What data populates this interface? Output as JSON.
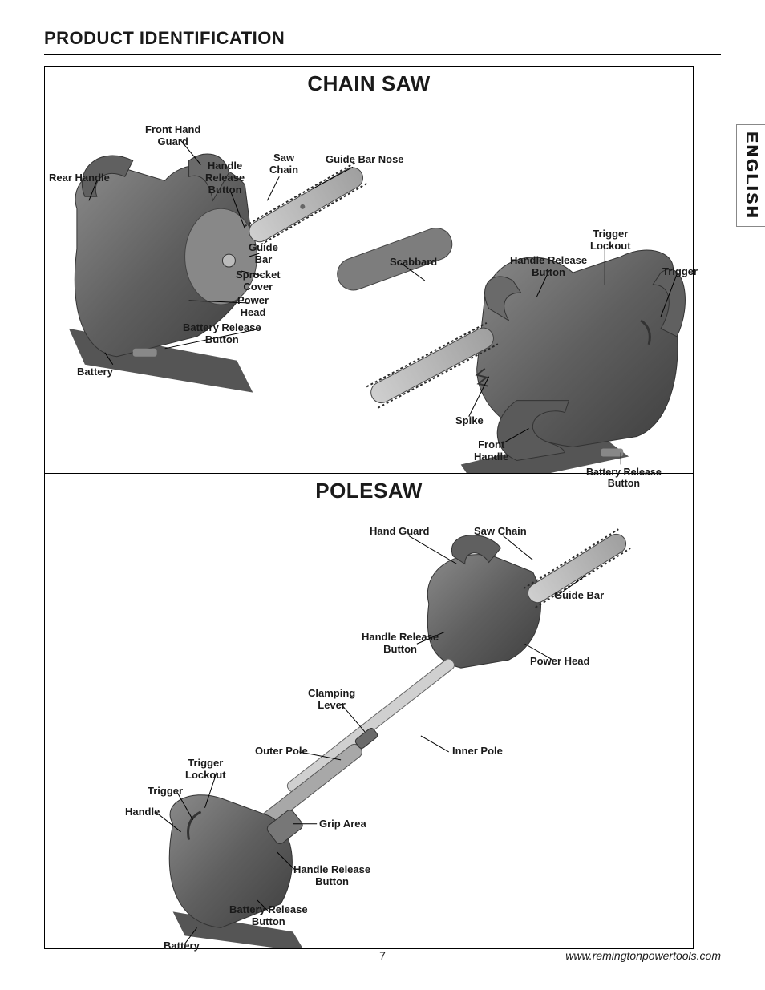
{
  "page_title": "PRODUCT IDENTIFICATION",
  "language_tab": "ENGLISH",
  "page_number": "7",
  "footer_url": "www.remingtonpowertools.com",
  "chainsaw": {
    "title": "CHAIN SAW",
    "labels": {
      "front_hand_guard": "Front Hand\nGuard",
      "rear_handle": "Rear Handle",
      "handle_release_button_l": "Handle\nRelease\nButton",
      "saw_chain": "Saw\nChain",
      "guide_bar_nose": "Guide Bar Nose",
      "guide_bar": "Guide\nBar",
      "sprocket_cover": "Sprocket\nCover",
      "power_head": "Power\nHead",
      "battery_release_button_l": "Battery Release\nButton",
      "battery": "Battery",
      "scabbard": "Scabbard",
      "trigger_lockout": "Trigger\nLockout",
      "handle_release_button_r": "Handle Release\nButton",
      "trigger": "Trigger",
      "spike": "Spike",
      "front_handle": "Front\nHandle",
      "battery_release_button_r": "Battery Release\nButton"
    }
  },
  "polesaw": {
    "title": "POLESAW",
    "labels": {
      "hand_guard": "Hand Guard",
      "saw_chain": "Saw Chain",
      "guide_bar": "Guide Bar",
      "handle_release_button_top": "Handle Release\nButton",
      "power_head": "Power Head",
      "clamping_lever": "Clamping\nLever",
      "outer_pole": "Outer Pole",
      "inner_pole": "Inner Pole",
      "trigger_lockout": "Trigger\nLockout",
      "trigger": "Trigger",
      "handle": "Handle",
      "grip_area": "Grip Area",
      "handle_release_button_bot": "Handle Release\nButton",
      "battery_release_button": "Battery Release\nButton",
      "battery": "Battery"
    }
  },
  "style": {
    "body_fill": "#6e6e6e",
    "body_dark": "#4a4a4a",
    "body_light": "#9a9a9a",
    "bar_fill": "#b8b8b8",
    "chain_stroke": "#2a2a2a",
    "scabbard_fill": "#7d7d7d",
    "pole_fill": "#d0d0d0"
  }
}
